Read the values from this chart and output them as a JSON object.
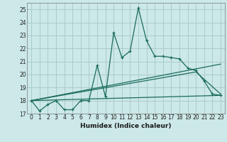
{
  "xlabel": "Humidex (Indice chaleur)",
  "background_color": "#cce8e8",
  "grid_color": "#aacccc",
  "line_color": "#1a6b5a",
  "xlim": [
    -0.5,
    23.5
  ],
  "ylim": [
    17,
    25.5
  ],
  "yticks": [
    17,
    18,
    19,
    20,
    21,
    22,
    23,
    24,
    25
  ],
  "xticks": [
    0,
    1,
    2,
    3,
    4,
    5,
    6,
    7,
    8,
    9,
    10,
    11,
    12,
    13,
    14,
    15,
    16,
    17,
    18,
    19,
    20,
    21,
    22,
    23
  ],
  "main_line_x": [
    0,
    1,
    2,
    3,
    4,
    5,
    6,
    7,
    8,
    9,
    10,
    11,
    12,
    13,
    14,
    15,
    16,
    17,
    18,
    19,
    20,
    21,
    22,
    23
  ],
  "main_line_y": [
    18.0,
    17.2,
    17.7,
    18.0,
    17.3,
    17.3,
    18.0,
    18.0,
    20.7,
    18.3,
    23.2,
    21.3,
    21.8,
    25.1,
    22.6,
    21.4,
    21.4,
    21.3,
    21.2,
    20.5,
    20.3,
    19.5,
    18.5,
    18.4
  ],
  "line2_x": [
    0,
    23
  ],
  "line2_y": [
    18.0,
    18.4
  ],
  "line3_x": [
    0,
    23
  ],
  "line3_y": [
    18.0,
    20.8
  ],
  "line4_x": [
    0,
    20,
    23
  ],
  "line4_y": [
    18.0,
    20.2,
    18.5
  ]
}
